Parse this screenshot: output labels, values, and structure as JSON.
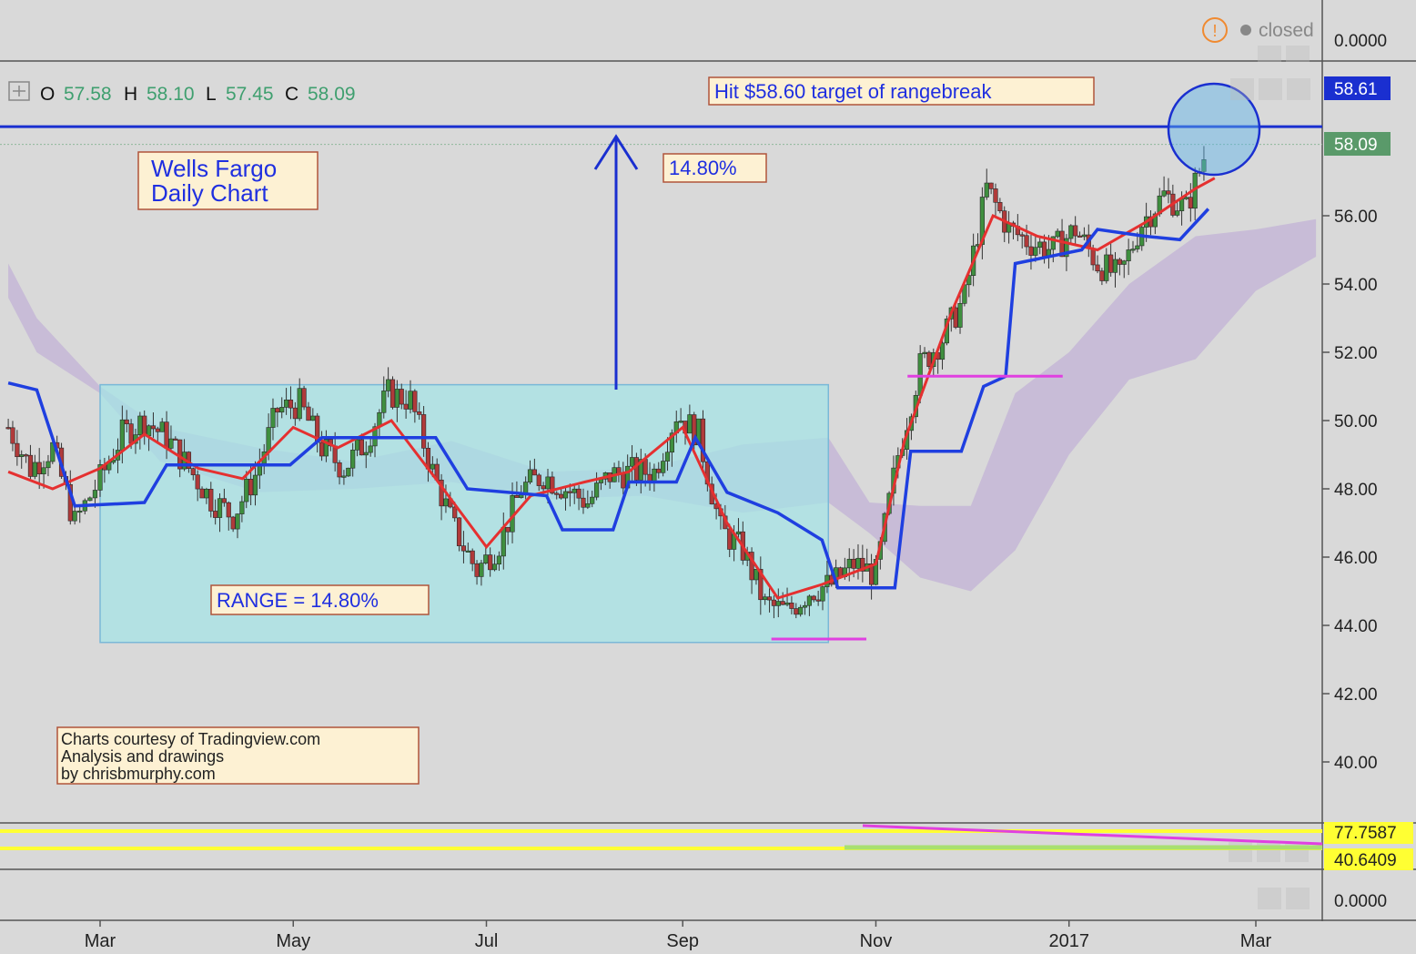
{
  "colors": {
    "background": "#d9d9d9",
    "axis_bg": "#d9d9d9",
    "up": "#3f8f3f",
    "down": "#b03a3a",
    "tenkan": "#e53030",
    "kijun": "#1f3fe0",
    "cloud": "#c4b6d6",
    "range_box": "#a6e3e6",
    "annot_border": "#b0543a",
    "annot_fill": "#fdf1d3",
    "annot_text": "#1f2fe0",
    "magenta": "#e040e0",
    "price_ohlc": "#3f9f6f",
    "last_price_tag": "#5a9a6a",
    "target_tag": "#1a2fd0",
    "osc_yellow": "#ffff33",
    "osc_green": "#a8e070",
    "warning": "#f08a30"
  },
  "header": {
    "o_label": "O",
    "o_value": "57.58",
    "h_label": "H",
    "h_value": "58.10",
    "l_label": "L",
    "l_value": "57.45",
    "c_label": "C",
    "c_value": "58.09",
    "status": "closed",
    "top_axis_value": "0.0000",
    "bottom_axis_value": "0.0000"
  },
  "annotations": {
    "target": "Hit $58.60 target of rangebreak",
    "title_line1": "Wells Fargo",
    "title_line2": "Daily Chart",
    "pct": "14.80%",
    "range": "RANGE = 14.80%",
    "credit_line1": "Charts courtesy of Tradingview.com",
    "credit_line2": "Analysis and drawings",
    "credit_line3": "by chrisbmurphy.com"
  },
  "oscillator": {
    "upper_value": "77.7587",
    "lower_value": "40.6409"
  },
  "chart_data": {
    "type": "candlestick",
    "y_ticks": [
      "56.00",
      "54.00",
      "52.00",
      "50.00",
      "48.00",
      "46.00",
      "44.00",
      "42.00",
      "40.00"
    ],
    "ylim": [
      38.4,
      62.6
    ],
    "x_ticks": [
      "Mar",
      "May",
      "Jul",
      "Sep",
      "Nov",
      "2017",
      "Mar"
    ],
    "last_price": 58.09,
    "target_price": 58.61,
    "target_label": "58.61",
    "last_label": "58.09",
    "range_box": {
      "start": "2016-03-01",
      "end": "2016-10-17",
      "low": 43.5,
      "high": 51.05
    },
    "support_lines": [
      {
        "start": "2016-09-29",
        "end": "2016-10-29",
        "level": 43.6
      },
      {
        "start": "2016-11-11",
        "end": "2016-12-30",
        "level": 51.3
      }
    ],
    "close_series": [
      [
        "2016-02-01",
        49.8
      ],
      [
        "2016-02-08",
        48.6
      ],
      [
        "2016-02-15",
        49.2
      ],
      [
        "2016-02-22",
        47.0
      ],
      [
        "2016-03-01",
        48.3
      ],
      [
        "2016-03-08",
        49.6
      ],
      [
        "2016-03-15",
        50.0
      ],
      [
        "2016-03-22",
        49.5
      ],
      [
        "2016-03-29",
        48.6
      ],
      [
        "2016-04-05",
        47.7
      ],
      [
        "2016-04-12",
        47.2
      ],
      [
        "2016-04-19",
        48.4
      ],
      [
        "2016-04-26",
        50.3
      ],
      [
        "2016-05-03",
        50.5
      ],
      [
        "2016-05-10",
        49.2
      ],
      [
        "2016-05-17",
        48.6
      ],
      [
        "2016-05-24",
        49.4
      ],
      [
        "2016-05-31",
        50.8
      ],
      [
        "2016-06-07",
        50.6
      ],
      [
        "2016-06-14",
        48.5
      ],
      [
        "2016-06-21",
        46.8
      ],
      [
        "2016-06-28",
        45.6
      ],
      [
        "2016-07-05",
        46.4
      ],
      [
        "2016-07-12",
        48.0
      ],
      [
        "2016-07-19",
        48.4
      ],
      [
        "2016-07-26",
        48.0
      ],
      [
        "2016-08-02",
        47.6
      ],
      [
        "2016-08-09",
        48.4
      ],
      [
        "2016-08-16",
        48.5
      ],
      [
        "2016-08-23",
        48.5
      ],
      [
        "2016-08-30",
        50.2
      ],
      [
        "2016-09-06",
        49.6
      ],
      [
        "2016-09-13",
        46.8
      ],
      [
        "2016-09-20",
        46.2
      ],
      [
        "2016-09-27",
        44.6
      ],
      [
        "2016-10-04",
        44.4
      ],
      [
        "2016-10-11",
        45.0
      ],
      [
        "2016-10-18",
        45.2
      ],
      [
        "2016-10-25",
        45.8
      ],
      [
        "2016-11-01",
        45.5
      ],
      [
        "2016-11-08",
        49.0
      ],
      [
        "2016-11-15",
        51.6
      ],
      [
        "2016-11-22",
        52.4
      ],
      [
        "2016-11-29",
        53.6
      ],
      [
        "2016-12-06",
        56.8
      ],
      [
        "2016-12-13",
        55.6
      ],
      [
        "2016-12-20",
        55.2
      ],
      [
        "2016-12-27",
        55.0
      ],
      [
        "2017-01-03",
        55.6
      ],
      [
        "2017-01-10",
        54.6
      ],
      [
        "2017-01-17",
        54.2
      ],
      [
        "2017-01-24",
        55.8
      ],
      [
        "2017-01-31",
        56.6
      ],
      [
        "2017-02-07",
        56.2
      ],
      [
        "2017-02-14",
        58.09
      ]
    ],
    "tenkan_series": [
      [
        "2016-02-01",
        48.5
      ],
      [
        "2016-02-15",
        48.0
      ],
      [
        "2016-03-01",
        48.6
      ],
      [
        "2016-03-15",
        49.6
      ],
      [
        "2016-04-01",
        48.6
      ],
      [
        "2016-04-15",
        48.3
      ],
      [
        "2016-05-01",
        49.8
      ],
      [
        "2016-05-15",
        49.2
      ],
      [
        "2016-06-01",
        50.0
      ],
      [
        "2016-06-15",
        48.3
      ],
      [
        "2016-07-01",
        46.3
      ],
      [
        "2016-07-15",
        47.8
      ],
      [
        "2016-08-01",
        48.2
      ],
      [
        "2016-08-15",
        48.5
      ],
      [
        "2016-09-01",
        49.8
      ],
      [
        "2016-09-15",
        47.0
      ],
      [
        "2016-10-01",
        44.8
      ],
      [
        "2016-10-15",
        45.2
      ],
      [
        "2016-11-01",
        45.8
      ],
      [
        "2016-11-10",
        49.4
      ],
      [
        "2016-11-25",
        53.2
      ],
      [
        "2016-12-08",
        56.0
      ],
      [
        "2016-12-22",
        55.4
      ],
      [
        "2017-01-10",
        55.0
      ],
      [
        "2017-01-25",
        55.8
      ],
      [
        "2017-02-10",
        56.8
      ],
      [
        "2017-02-16",
        57.1
      ]
    ],
    "kijun_series": [
      [
        "2016-02-01",
        51.1
      ],
      [
        "2016-02-10",
        50.9
      ],
      [
        "2016-02-22",
        47.5
      ],
      [
        "2016-03-15",
        47.6
      ],
      [
        "2016-03-22",
        48.7
      ],
      [
        "2016-04-30",
        48.7
      ],
      [
        "2016-05-10",
        49.5
      ],
      [
        "2016-06-15",
        49.5
      ],
      [
        "2016-06-25",
        48.0
      ],
      [
        "2016-07-20",
        47.8
      ],
      [
        "2016-07-25",
        46.8
      ],
      [
        "2016-08-10",
        46.8
      ],
      [
        "2016-08-15",
        48.2
      ],
      [
        "2016-08-30",
        48.2
      ],
      [
        "2016-09-05",
        49.5
      ],
      [
        "2016-09-15",
        47.9
      ],
      [
        "2016-10-01",
        47.3
      ],
      [
        "2016-10-15",
        46.5
      ],
      [
        "2016-10-20",
        45.1
      ],
      [
        "2016-11-07",
        45.1
      ],
      [
        "2016-11-12",
        49.1
      ],
      [
        "2016-11-28",
        49.1
      ],
      [
        "2016-12-05",
        51.0
      ],
      [
        "2016-12-12",
        51.3
      ],
      [
        "2016-12-15",
        54.6
      ],
      [
        "2017-01-05",
        55.0
      ],
      [
        "2017-01-10",
        55.6
      ],
      [
        "2017-01-25",
        55.4
      ],
      [
        "2017-02-05",
        55.3
      ],
      [
        "2017-02-14",
        56.2
      ]
    ],
    "cloud_top": [
      [
        "2016-02-01",
        54.6
      ],
      [
        "2016-02-10",
        53.0
      ],
      [
        "2016-03-01",
        51.0
      ],
      [
        "2016-03-20",
        49.8
      ],
      [
        "2016-04-20",
        49.2
      ],
      [
        "2016-05-20",
        48.8
      ],
      [
        "2016-06-20",
        49.4
      ],
      [
        "2016-07-20",
        48.5
      ],
      [
        "2016-08-20",
        48.6
      ],
      [
        "2016-09-20",
        49.3
      ],
      [
        "2016-10-17",
        49.5
      ],
      [
        "2016-10-30",
        47.6
      ],
      [
        "2016-11-15",
        47.5
      ],
      [
        "2016-12-01",
        47.5
      ],
      [
        "2016-12-15",
        50.8
      ],
      [
        "2017-01-01",
        52.0
      ],
      [
        "2017-01-20",
        54.0
      ],
      [
        "2017-02-10",
        55.4
      ],
      [
        "2017-03-01",
        55.6
      ],
      [
        "2017-03-20",
        55.9
      ]
    ],
    "cloud_bottom": [
      [
        "2016-02-01",
        53.6
      ],
      [
        "2016-02-10",
        52.0
      ],
      [
        "2016-03-01",
        50.8
      ],
      [
        "2016-03-20",
        48.8
      ],
      [
        "2016-04-20",
        47.9
      ],
      [
        "2016-05-20",
        48.0
      ],
      [
        "2016-06-20",
        48.2
      ],
      [
        "2016-07-20",
        47.7
      ],
      [
        "2016-08-20",
        47.8
      ],
      [
        "2016-09-20",
        47.3
      ],
      [
        "2016-10-17",
        47.6
      ],
      [
        "2016-10-30",
        46.7
      ],
      [
        "2016-11-15",
        45.4
      ],
      [
        "2016-12-01",
        45.0
      ],
      [
        "2016-12-15",
        46.2
      ],
      [
        "2017-01-01",
        49.0
      ],
      [
        "2017-01-20",
        51.2
      ],
      [
        "2017-02-10",
        51.8
      ],
      [
        "2017-03-01",
        53.8
      ],
      [
        "2017-03-20",
        54.8
      ]
    ]
  }
}
